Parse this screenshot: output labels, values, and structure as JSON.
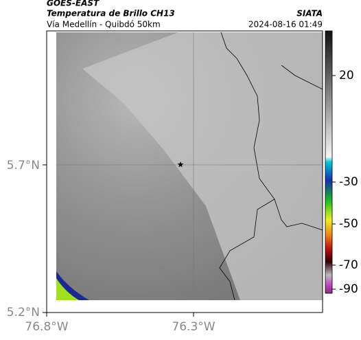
{
  "header": {
    "title": "GOES-EAST",
    "subtitle": "Temperatura de Brillo CH13",
    "location": "Vía Medellín - Quibdó 50km",
    "source": "SIATA",
    "datetime": "2024-08-16 01:49"
  },
  "map": {
    "lat_labels": [
      "5.7°N",
      "5.2°N"
    ],
    "lon_labels": [
      "76.8°W",
      "76.3°W"
    ]
  },
  "colorbar": {
    "ticks": [
      20,
      -30,
      -50,
      -70,
      -90
    ]
  }
}
